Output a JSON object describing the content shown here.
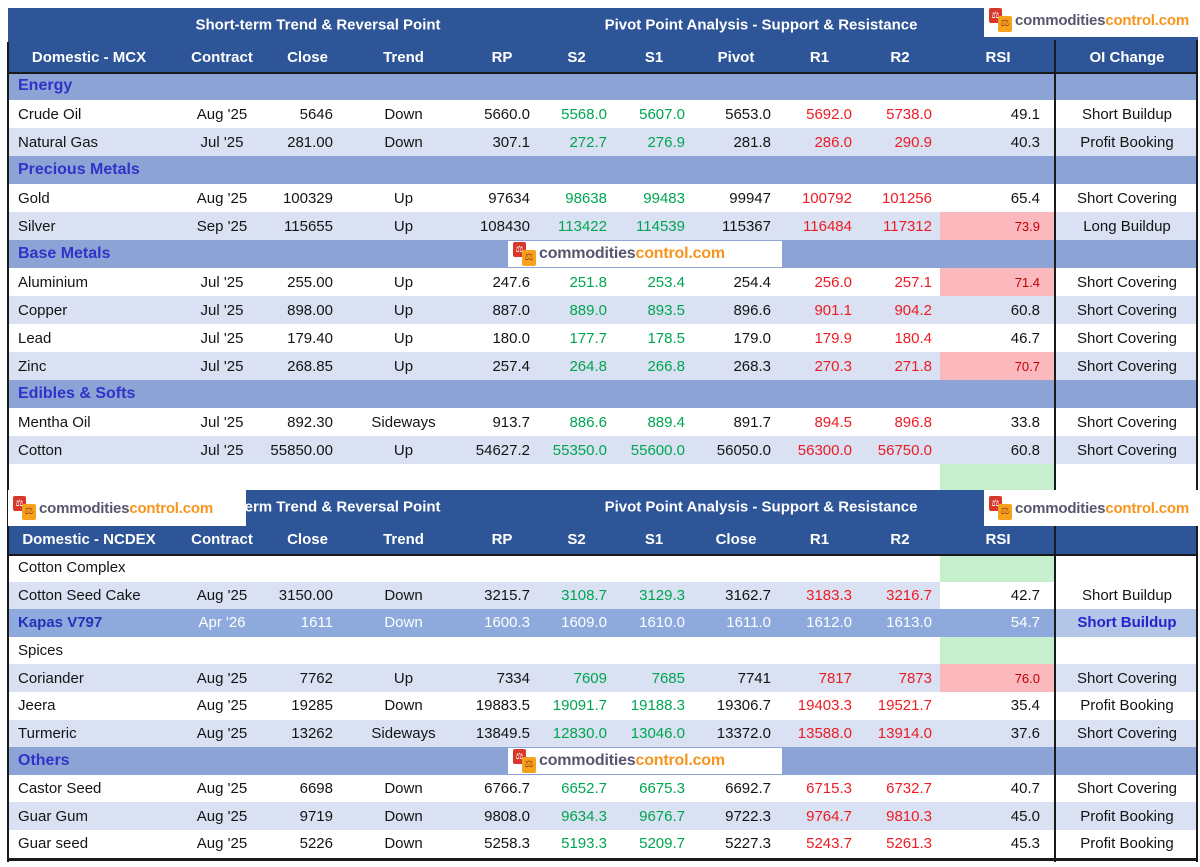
{
  "brand": {
    "name_part1": "commodities",
    "name_part2": "control.com",
    "icon_glyph": "⚖",
    "icon": "scales-icon",
    "orange": "#F7941D",
    "gray_purple": "#57566E"
  },
  "colors": {
    "header_bg": "#2E5597",
    "section_band_bg": "#8CA3D6",
    "row_light_bg": "#D9E1F2",
    "highlight_row_bg": "#8EA9DB",
    "highlight_oi_bg": "#B4C6E7",
    "rsi_alert_bg": "#FBB9BE",
    "rsi_alert_text": "#C00000",
    "rsi_green_bg": "#C6EFCE",
    "support_green_text": "#00A551",
    "resistance_red_text": "#ED1C24",
    "section_label_text": "#3232C8"
  },
  "tables": [
    {
      "group1": "Short-term Trend & Reversal Point",
      "group2": "Pivot Point Analysis - Support & Resistance",
      "columns": [
        "Domestic - MCX",
        "Contract",
        "Close",
        "Trend",
        "RP",
        "S2",
        "S1",
        "Pivot",
        "R1",
        "R2",
        "RSI",
        "OI Change"
      ],
      "rows": [
        {
          "kind": "section",
          "label": "Energy"
        },
        {
          "kind": "data",
          "shade": "w",
          "name": "Crude Oil",
          "contract": "Aug '25",
          "close": "5646",
          "trend": "Down",
          "rp": "5660.0",
          "s2": "5568.0",
          "s1": "5607.0",
          "pivot": "5653.0",
          "r1": "5692.0",
          "r2": "5738.0",
          "rsi": "49.1",
          "rsi_style": "normal",
          "oi": "Short Buildup",
          "oi_style": "normal"
        },
        {
          "kind": "data",
          "shade": "l",
          "name": "Natural Gas",
          "contract": "Jul '25",
          "close": "281.00",
          "trend": "Down",
          "rp": "307.1",
          "s2": "272.7",
          "s1": "276.9",
          "pivot": "281.8",
          "r1": "286.0",
          "r2": "290.9",
          "rsi": "40.3",
          "rsi_style": "normal",
          "oi": "Profit Booking",
          "oi_style": "normal"
        },
        {
          "kind": "section",
          "label": "Precious Metals"
        },
        {
          "kind": "data",
          "shade": "w",
          "name": "Gold",
          "contract": "Aug '25",
          "close": "100329",
          "trend": "Up",
          "rp": "97634",
          "s2": "98638",
          "s1": "99483",
          "pivot": "99947",
          "r1": "100792",
          "r2": "101256",
          "rsi": "65.4",
          "rsi_style": "normal",
          "oi": "Short Covering",
          "oi_style": "normal"
        },
        {
          "kind": "data",
          "shade": "l",
          "name": "Silver",
          "contract": "Sep '25",
          "close": "115655",
          "trend": "Up",
          "rp": "108430",
          "s2": "113422",
          "s1": "114539",
          "pivot": "115367",
          "r1": "116484",
          "r2": "117312",
          "rsi": "73.9",
          "rsi_style": "alert",
          "oi": "Long Buildup",
          "oi_style": "normal"
        },
        {
          "kind": "section",
          "label": "Base Metals"
        },
        {
          "kind": "data",
          "shade": "w",
          "name": "Aluminium",
          "contract": "Jul '25",
          "close": "255.00",
          "trend": "Up",
          "rp": "247.6",
          "s2": "251.8",
          "s1": "253.4",
          "pivot": "254.4",
          "r1": "256.0",
          "r2": "257.1",
          "rsi": "71.4",
          "rsi_style": "alert",
          "oi": "Short Covering",
          "oi_style": "normal"
        },
        {
          "kind": "data",
          "shade": "l",
          "name": "Copper",
          "contract": "Jul '25",
          "close": "898.00",
          "trend": "Up",
          "rp": "887.0",
          "s2": "889.0",
          "s1": "893.5",
          "pivot": "896.6",
          "r1": "901.1",
          "r2": "904.2",
          "rsi": "60.8",
          "rsi_style": "normal",
          "oi": "Short Covering",
          "oi_style": "normal"
        },
        {
          "kind": "data",
          "shade": "w",
          "name": "Lead",
          "contract": "Jul '25",
          "close": "179.40",
          "trend": "Up",
          "rp": "180.0",
          "s2": "177.7",
          "s1": "178.5",
          "pivot": "179.0",
          "r1": "179.9",
          "r2": "180.4",
          "rsi": "46.7",
          "rsi_style": "normal",
          "oi": "Short Covering",
          "oi_style": "normal"
        },
        {
          "kind": "data",
          "shade": "l",
          "name": "Zinc",
          "contract": "Jul '25",
          "close": "268.85",
          "trend": "Up",
          "rp": "257.4",
          "s2": "264.8",
          "s1": "266.8",
          "pivot": "268.3",
          "r1": "270.3",
          "r2": "271.8",
          "rsi": "70.7",
          "rsi_style": "alert",
          "oi": "Short Covering",
          "oi_style": "normal"
        },
        {
          "kind": "section",
          "label": "Edibles & Softs"
        },
        {
          "kind": "data",
          "shade": "w",
          "name": "Mentha Oil",
          "contract": "Jul '25",
          "close": "892.30",
          "trend": "Sideways",
          "rp": "913.7",
          "s2": "886.6",
          "s1": "889.4",
          "pivot": "891.7",
          "r1": "894.5",
          "r2": "896.8",
          "rsi": "33.8",
          "rsi_style": "normal",
          "oi": "Short Covering",
          "oi_style": "normal"
        },
        {
          "kind": "data",
          "shade": "l",
          "name": "Cotton",
          "contract": "Jul '25",
          "close": "55850.00",
          "trend": "Up",
          "rp": "54627.2",
          "s2": "55350.0",
          "s1": "55600.0",
          "pivot": "56050.0",
          "r1": "56300.0",
          "r2": "56750.0",
          "rsi": "60.8",
          "rsi_style": "normal",
          "oi": "Short Covering",
          "oi_style": "normal"
        },
        {
          "kind": "spacer",
          "label": ""
        }
      ]
    },
    {
      "group1": "Short-term Trend & Reversal Point",
      "group2": "Pivot Point Analysis - Support & Resistance",
      "columns": [
        "Domestic - NCDEX",
        "Contract",
        "Close",
        "Trend",
        "RP",
        "S2",
        "S1",
        "Close",
        "R1",
        "R2",
        "RSI",
        ""
      ],
      "rows": [
        {
          "kind": "section-white",
          "label": "Cotton Complex"
        },
        {
          "kind": "data",
          "shade": "l",
          "name": "Cotton Seed Cake",
          "contract": "Aug '25",
          "close": "3150.00",
          "trend": "Down",
          "rp": "3215.7",
          "s2": "3108.7",
          "s1": "3129.3",
          "pivot": "3162.7",
          "r1": "3183.3",
          "r2": "3216.7",
          "rsi": "42.7",
          "rsi_style": "white",
          "oi": "Short Buildup",
          "oi_style": "white"
        },
        {
          "kind": "data",
          "shade": "hl",
          "name": "Kapas V797",
          "contract": "Apr '26",
          "close": "1611",
          "trend": "Down",
          "rp": "1600.3",
          "s2": "1609.0",
          "s1": "1610.0",
          "pivot": "1611.0",
          "r1": "1612.0",
          "r2": "1613.0",
          "rsi": "54.7",
          "rsi_style": "normal",
          "oi": "Short Buildup",
          "oi_style": "highlight"
        },
        {
          "kind": "section-white",
          "label": "Spices"
        },
        {
          "kind": "data",
          "shade": "l",
          "name": "Coriander",
          "contract": "Aug '25",
          "close": "7762",
          "trend": "Up",
          "rp": "7334",
          "s2": "7609",
          "s1": "7685",
          "pivot": "7741",
          "r1": "7817",
          "r2": "7873",
          "rsi": "76.0",
          "rsi_style": "alert",
          "oi": "Short Covering",
          "oi_style": "normal"
        },
        {
          "kind": "data",
          "shade": "w",
          "name": "Jeera",
          "contract": "Aug '25",
          "close": "19285",
          "trend": "Down",
          "rp": "19883.5",
          "s2": "19091.7",
          "s1": "19188.3",
          "pivot": "19306.7",
          "r1": "19403.3",
          "r2": "19521.7",
          "rsi": "35.4",
          "rsi_style": "normal",
          "oi": "Profit Booking",
          "oi_style": "normal"
        },
        {
          "kind": "data",
          "shade": "l",
          "name": "Turmeric",
          "contract": "Aug '25",
          "close": "13262",
          "trend": "Sideways",
          "rp": "13849.5",
          "s2": "12830.0",
          "s1": "13046.0",
          "pivot": "13372.0",
          "r1": "13588.0",
          "r2": "13914.0",
          "rsi": "37.6",
          "rsi_style": "normal",
          "oi": "Short Covering",
          "oi_style": "normal"
        },
        {
          "kind": "section",
          "label": "Others"
        },
        {
          "kind": "data",
          "shade": "w",
          "name": "Castor Seed",
          "contract": "Aug '25",
          "close": "6698",
          "trend": "Down",
          "rp": "6766.7",
          "s2": "6652.7",
          "s1": "6675.3",
          "pivot": "6692.7",
          "r1": "6715.3",
          "r2": "6732.7",
          "rsi": "40.7",
          "rsi_style": "normal",
          "oi": "Short Covering",
          "oi_style": "normal"
        },
        {
          "kind": "data",
          "shade": "l",
          "name": "Guar Gum",
          "contract": "Aug '25",
          "close": "9719",
          "trend": "Down",
          "rp": "9808.0",
          "s2": "9634.3",
          "s1": "9676.7",
          "pivot": "9722.3",
          "r1": "9764.7",
          "r2": "9810.3",
          "rsi": "45.0",
          "rsi_style": "normal",
          "oi": "Profit Booking",
          "oi_style": "normal"
        },
        {
          "kind": "data",
          "shade": "w",
          "name": "Guar seed",
          "contract": "Aug '25",
          "close": "5226",
          "trend": "Down",
          "rp": "5258.3",
          "s2": "5193.3",
          "s1": "5209.7",
          "pivot": "5227.3",
          "r1": "5243.7",
          "r2": "5261.3",
          "rsi": "45.3",
          "rsi_style": "normal",
          "oi": "Profit Booking",
          "oi_style": "normal"
        }
      ]
    }
  ]
}
